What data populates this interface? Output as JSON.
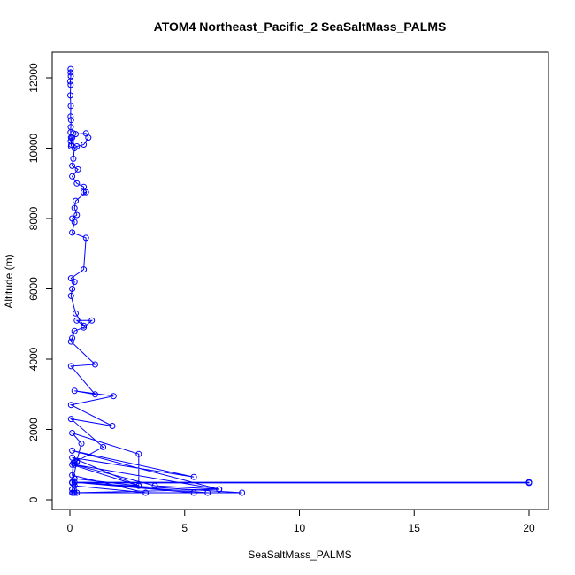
{
  "chart_data": {
    "type": "line",
    "title": "ATOM4 Northeast_Pacific_2 SeaSaltMass_PALMS",
    "xlabel": "SeaSaltMass_PALMS",
    "ylabel": "Altitude (m)",
    "xlim": [
      0,
      20
    ],
    "ylim": [
      0,
      12200
    ],
    "xticks": [
      0,
      5,
      10,
      15,
      20
    ],
    "yticks": [
      0,
      2000,
      4000,
      6000,
      8000,
      10000,
      12000
    ],
    "grid": false,
    "legend": "none",
    "color": "#0000ff",
    "series": [
      {
        "x": [
          0.03,
          0.03,
          0.04,
          0.02,
          0.03,
          0.02,
          0.04,
          0.03,
          0.05,
          0.04,
          0.03,
          0.05,
          0.04,
          0.06,
          0.05,
          0.1,
          0.15,
          0.25,
          0.7,
          0.8,
          0.6,
          0.3,
          0.2,
          0.15,
          0.1,
          0.35,
          0.1,
          0.3,
          0.6,
          0.6,
          0.7,
          0.25,
          0.2,
          0.3,
          0.1,
          0.2,
          0.1,
          0.7,
          0.6,
          0.05,
          0.2,
          0.1,
          0.05,
          0.25,
          0.6,
          0.3,
          0.95,
          0.6,
          0.2,
          0.1,
          0.05,
          1.1,
          0.05,
          1.1,
          0.2,
          1.9,
          0.05,
          1.85,
          0.05,
          1.45,
          0.3,
          0.5,
          0.1,
          3.0,
          3.0,
          0.1,
          5.4,
          0.1,
          6.5,
          0.2,
          3.7,
          6.5,
          0.2,
          7.5,
          0.1,
          20.0,
          20.0,
          0.1,
          0.3,
          0.2,
          0.1,
          3.0,
          0.2,
          0.3,
          6.0,
          0.2,
          5.4,
          0.1,
          0.15,
          0.1,
          3.3,
          0.2,
          0.1,
          0.15
        ],
        "y": [
          12250,
          12150,
          12050,
          11900,
          11800,
          11500,
          11200,
          10900,
          10800,
          10600,
          10450,
          10300,
          10200,
          10100,
          10050,
          10300,
          10420,
          10400,
          10420,
          10300,
          10100,
          10050,
          10000,
          9700,
          9500,
          9400,
          9200,
          9000,
          8900,
          8750,
          8750,
          8500,
          8300,
          8100,
          8000,
          7900,
          7600,
          7450,
          6550,
          6300,
          6200,
          6000,
          5800,
          5300,
          4950,
          5100,
          5100,
          4900,
          4800,
          4600,
          4500,
          3850,
          3800,
          3000,
          3100,
          2950,
          2700,
          2100,
          2300,
          1500,
          1100,
          1600,
          1900,
          1300,
          400,
          1200,
          650,
          1400,
          300,
          1000,
          400,
          300,
          200,
          200,
          500,
          500,
          480,
          480,
          1080,
          1050,
          1000,
          400,
          600,
          200,
          200,
          500,
          200,
          200,
          1050,
          700,
          200,
          400,
          300,
          200
        ]
      }
    ]
  }
}
